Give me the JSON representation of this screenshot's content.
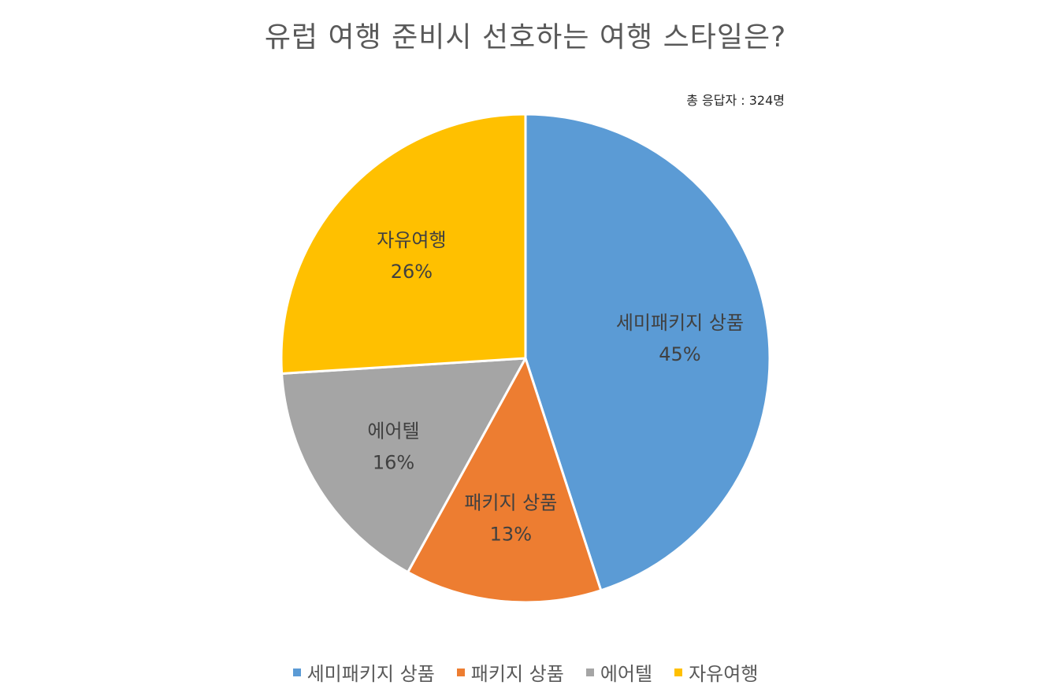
{
  "title": "유럽 여행 준비시 선호하는 여행 스타일은?",
  "note": "총 응답자 : 324명",
  "chart_data": {
    "type": "pie",
    "title": "유럽 여행 준비시 선호하는 여행 스타일은?",
    "start_angle_deg": 0,
    "direction": "clockwise",
    "legend_position": "bottom",
    "slices": [
      {
        "label": "세미패키지 상품",
        "value": 45,
        "display": "45%",
        "color": "#5B9BD5"
      },
      {
        "label": "패키지 상품",
        "value": 13,
        "display": "13%",
        "color": "#ED7D31"
      },
      {
        "label": "에어텔",
        "value": 16,
        "display": "16%",
        "color": "#A5A5A5"
      },
      {
        "label": "자유여행",
        "value": 26,
        "display": "26%",
        "color": "#FFC000"
      }
    ]
  }
}
